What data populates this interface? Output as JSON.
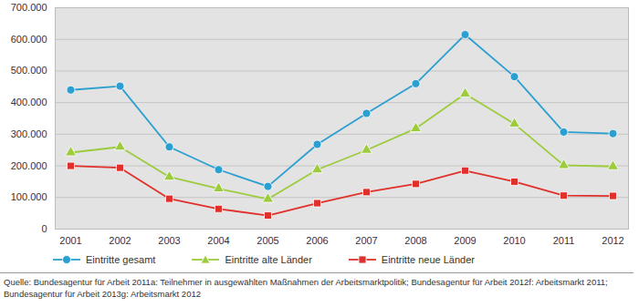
{
  "chart_data": {
    "type": "line",
    "source": "Quelle: Bundesagentur für Arbeit 2011a: Teilnehmer in ausgewählten Maßnahmen der Arbeitsmarktpolitik; Bundesagentur für Arbeit 2012f: Arbeitsmarkt 2011; Bundesagentur für Arbeit 2013g: Arbeitsmarkt 2012",
    "categories": [
      "2001",
      "2002",
      "2003",
      "2004",
      "2005",
      "2006",
      "2007",
      "2008",
      "2009",
      "2010",
      "2011",
      "2012"
    ],
    "series": [
      {
        "name": "Eintritte gesamt",
        "color": "#2b9fd0",
        "marker": "circle",
        "values": [
          440000,
          452000,
          260000,
          188000,
          135000,
          268000,
          366000,
          460000,
          615000,
          482000,
          307000,
          302000
        ]
      },
      {
        "name": "Eintritte alte Länder",
        "color": "#9ccb3b",
        "marker": "triangle",
        "values": [
          242000,
          260000,
          165000,
          128000,
          95000,
          188000,
          250000,
          318000,
          428000,
          333000,
          202000,
          198000
        ]
      },
      {
        "name": "Eintritte neue Länder",
        "color": "#e0302b",
        "marker": "square",
        "values": [
          200000,
          194000,
          96000,
          64000,
          43000,
          82000,
          117000,
          143000,
          185000,
          150000,
          106000,
          105000
        ]
      }
    ],
    "ylim": [
      0,
      700000
    ],
    "yticks": [
      0,
      {
        "value": 100000,
        "label": "100.000"
      },
      {
        "value": 200000,
        "label": "200.000"
      },
      {
        "value": 300000,
        "label": "300.000"
      },
      {
        "value": 400000,
        "label": "400.000"
      },
      {
        "value": 500000,
        "label": "500.000"
      },
      {
        "value": 600000,
        "label": "600.000"
      },
      {
        "value": 700000,
        "label": "700.000"
      }
    ],
    "grid": true,
    "legend": "bottom"
  }
}
